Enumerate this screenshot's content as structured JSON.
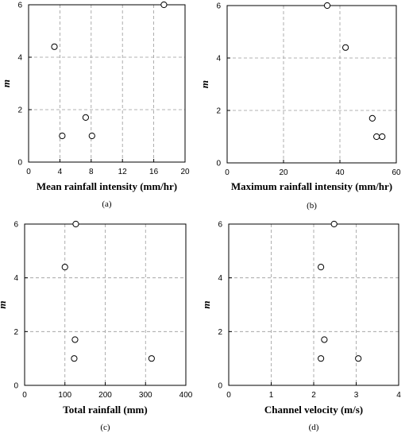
{
  "chart_data": [
    {
      "type": "scatter",
      "caption": "(a)",
      "xlabel": "Mean rainfall intensity (mm/hr)",
      "ylabel": "m",
      "xlim": [
        0,
        20
      ],
      "ylim": [
        0,
        6
      ],
      "xticks": [
        0,
        4,
        8,
        12,
        16,
        20
      ],
      "yticks": [
        0,
        2,
        4,
        6
      ],
      "grid": true,
      "points": [
        {
          "x": 17.3,
          "y": 6.0
        },
        {
          "x": 3.3,
          "y": 4.4
        },
        {
          "x": 7.3,
          "y": 1.7
        },
        {
          "x": 4.3,
          "y": 1.0
        },
        {
          "x": 8.1,
          "y": 1.0
        }
      ]
    },
    {
      "type": "scatter",
      "caption": "(b)",
      "xlabel": "Maximum rainfall intensity (mm/hr)",
      "ylabel": "m",
      "xlim": [
        0,
        60
      ],
      "ylim": [
        0,
        6
      ],
      "xticks": [
        0,
        20,
        40,
        60
      ],
      "yticks": [
        0,
        2,
        4,
        6
      ],
      "grid": true,
      "points": [
        {
          "x": 35.5,
          "y": 6.0
        },
        {
          "x": 42.0,
          "y": 4.4
        },
        {
          "x": 51.5,
          "y": 1.7
        },
        {
          "x": 53.0,
          "y": 1.0
        },
        {
          "x": 55.0,
          "y": 1.0
        }
      ]
    },
    {
      "type": "scatter",
      "caption": "(c)",
      "xlabel": "Total rainfall (mm)",
      "ylabel": "m",
      "xlim": [
        0,
        400
      ],
      "ylim": [
        0,
        6
      ],
      "xticks": [
        0,
        100,
        200,
        300,
        400
      ],
      "yticks": [
        0,
        2,
        4,
        6
      ],
      "grid": true,
      "points": [
        {
          "x": 127,
          "y": 6.0
        },
        {
          "x": 100,
          "y": 4.4
        },
        {
          "x": 125,
          "y": 1.7
        },
        {
          "x": 123,
          "y": 1.0
        },
        {
          "x": 315,
          "y": 1.0
        }
      ]
    },
    {
      "type": "scatter",
      "caption": "(d)",
      "xlabel": "Channel velocity (m/s)",
      "ylabel": "m",
      "xlim": [
        0,
        4
      ],
      "ylim": [
        0,
        6
      ],
      "xticks": [
        0,
        1,
        2,
        3,
        4
      ],
      "yticks": [
        0,
        2,
        4,
        6
      ],
      "grid": true,
      "points": [
        {
          "x": 2.48,
          "y": 6.0
        },
        {
          "x": 2.17,
          "y": 4.4
        },
        {
          "x": 2.25,
          "y": 1.7
        },
        {
          "x": 2.17,
          "y": 1.0
        },
        {
          "x": 3.05,
          "y": 1.0
        }
      ]
    }
  ]
}
